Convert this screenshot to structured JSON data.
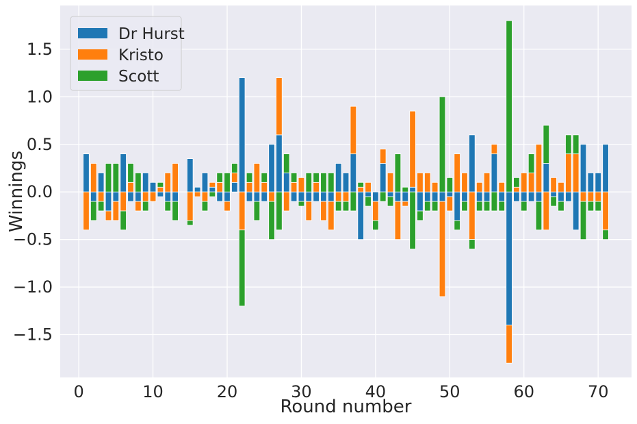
{
  "chart_data": {
    "type": "bar",
    "stacked": true,
    "title": "",
    "xlabel": "Round number",
    "ylabel": "Winnings",
    "xlim": [
      -2.5,
      74.5
    ],
    "ylim": [
      -1.95,
      1.96
    ],
    "x_ticks": [
      0,
      10,
      20,
      30,
      40,
      50,
      60,
      70
    ],
    "y_ticks": [
      -1.5,
      -1.0,
      -0.5,
      0.0,
      0.5,
      1.0,
      1.5
    ],
    "y_tick_labels": [
      "−1.5",
      "−1.0",
      "−0.5",
      "0.0",
      "0.5",
      "1.0",
      "1.5"
    ],
    "x_tick_labels": [
      "0",
      "10",
      "20",
      "30",
      "40",
      "50",
      "60",
      "70"
    ],
    "grid": true,
    "legend_position": "top-left",
    "x": [
      1,
      2,
      3,
      4,
      5,
      6,
      7,
      8,
      9,
      10,
      11,
      12,
      13,
      14,
      15,
      16,
      17,
      18,
      19,
      20,
      21,
      22,
      23,
      24,
      25,
      26,
      27,
      28,
      29,
      30,
      31,
      32,
      33,
      34,
      35,
      36,
      37,
      38,
      39,
      40,
      41,
      42,
      43,
      44,
      45,
      46,
      47,
      48,
      49,
      50,
      51,
      52,
      53,
      54,
      55,
      56,
      57,
      58,
      59,
      60,
      61,
      62,
      63,
      64,
      65,
      66,
      67,
      68,
      69,
      70,
      71
    ],
    "series": [
      {
        "name": "Dr Hurst",
        "color": "#1f77b4",
        "values": [
          0.4,
          -0.1,
          0.2,
          -0.2,
          -0.1,
          0.4,
          -0.1,
          -0.1,
          0.2,
          0.1,
          -0.05,
          -0.1,
          -0.1,
          0,
          0.35,
          0.05,
          0.2,
          0.05,
          -0.1,
          -0.1,
          0.1,
          1.2,
          -0.1,
          -0.1,
          -0.1,
          0.5,
          0.6,
          0.2,
          -0.1,
          -0.1,
          -0.1,
          -0.1,
          -0.1,
          -0.1,
          0.3,
          0.2,
          0.4,
          -0.5,
          -0.05,
          -0.1,
          0.3,
          -0.05,
          -0.1,
          -0.1,
          0.05,
          -0.2,
          -0.1,
          -0.1,
          -0.1,
          -0.05,
          -0.3,
          -0.1,
          0.6,
          -0.1,
          -0.1,
          0.4,
          -0.1,
          -1.4,
          -0.1,
          -0.1,
          -0.1,
          -0.1,
          0.3,
          -0.05,
          -0.1,
          -0.1,
          -0.4,
          0.5,
          0.2,
          0.2,
          0.5
        ]
      },
      {
        "name": "Kristo",
        "color": "#ff7f0e",
        "values": [
          -0.4,
          0.3,
          -0.1,
          -0.1,
          -0.2,
          -0.2,
          0.1,
          -0.1,
          -0.1,
          -0.1,
          0.05,
          0.2,
          0.3,
          0,
          -0.3,
          -0.05,
          -0.1,
          0.05,
          0.1,
          -0.1,
          0.1,
          -0.4,
          0.1,
          0.3,
          0.1,
          -0.1,
          0.6,
          -0.2,
          0.1,
          0.15,
          -0.2,
          0.1,
          -0.2,
          -0.3,
          -0.1,
          -0.1,
          0.5,
          0.05,
          0.1,
          -0.2,
          0.15,
          0.2,
          -0.4,
          -0.05,
          0.8,
          0.2,
          0.2,
          0.1,
          -1.0,
          -0.15,
          0.4,
          0.2,
          -0.5,
          0.1,
          0.2,
          0.1,
          0.1,
          -0.4,
          0.05,
          0.2,
          0.2,
          0.5,
          -0.4,
          0.15,
          0.1,
          0.4,
          0.4,
          -0.1,
          -0.1,
          -0.1,
          -0.4
        ]
      },
      {
        "name": "Scott",
        "color": "#2ca02c",
        "values": [
          0,
          -0.2,
          -0.1,
          0.3,
          0.3,
          -0.2,
          0.2,
          0.2,
          -0.1,
          0,
          0.05,
          -0.1,
          -0.2,
          0,
          -0.05,
          0,
          -0.1,
          -0.05,
          0.1,
          0.2,
          0.1,
          -0.8,
          0.1,
          -0.2,
          0.1,
          -0.4,
          -0.4,
          0.2,
          0.1,
          -0.05,
          0.2,
          0.1,
          0.2,
          0.2,
          -0.1,
          -0.1,
          -0.2,
          0.05,
          -0.1,
          -0.1,
          -0.1,
          -0.1,
          0.4,
          0.05,
          -0.6,
          -0.1,
          -0.1,
          -0.1,
          1.0,
          0.15,
          -0.1,
          -0.1,
          -0.1,
          -0.1,
          -0.1,
          -0.2,
          -0.1,
          1.8,
          0.1,
          -0.1,
          0.2,
          -0.3,
          0.4,
          -0.1,
          -0.1,
          0.2,
          0.2,
          -0.4,
          -0.1,
          -0.1,
          -0.1
        ]
      }
    ]
  }
}
